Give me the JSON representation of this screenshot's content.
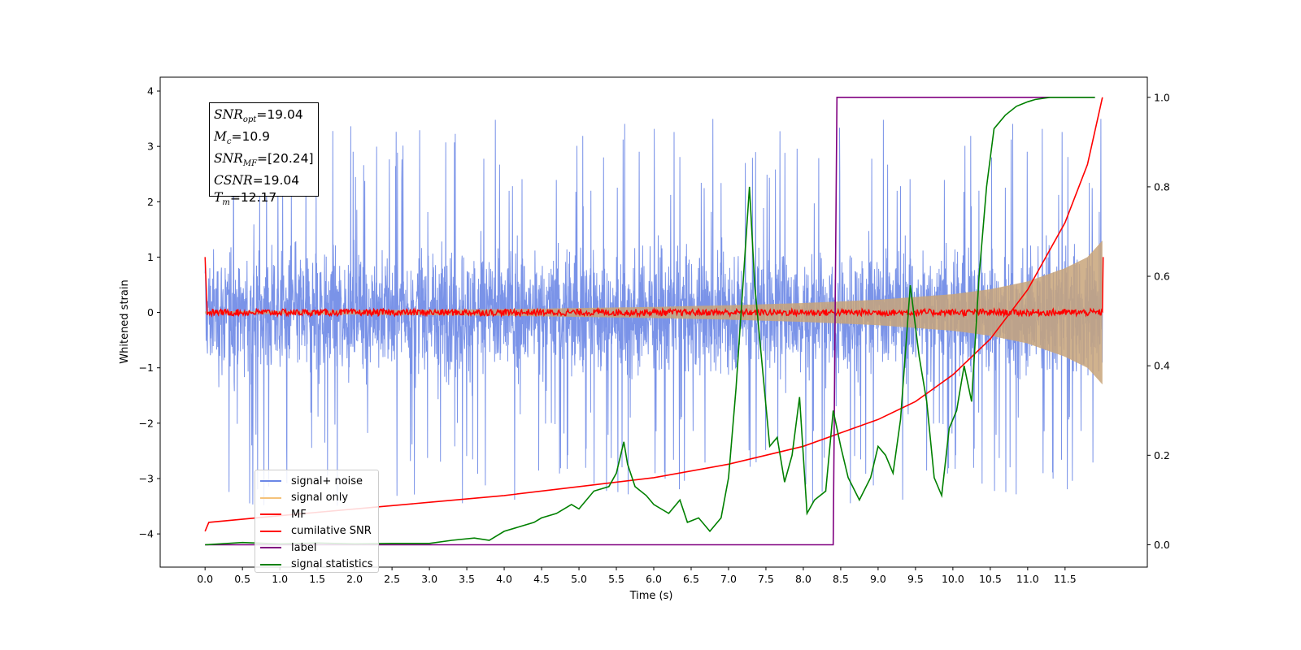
{
  "chart_data": {
    "type": "line",
    "title": "",
    "xlabel": "Time (s)",
    "ylabel": "Whitened strain",
    "y2label": "",
    "xlim": [
      -0.6,
      12.6
    ],
    "ylim": [
      -4.6,
      4.25
    ],
    "y2lim": [
      -0.05,
      1.045
    ],
    "x_ticks": [
      "0.0",
      "0.5",
      "1.0",
      "1.5",
      "2.0",
      "2.5",
      "3.0",
      "3.5",
      "4.0",
      "4.5",
      "5.0",
      "5.5",
      "6.0",
      "6.5",
      "7.0",
      "7.5",
      "8.0",
      "8.5",
      "9.0",
      "9.5",
      "10.0",
      "10.5",
      "11.0",
      "11.5"
    ],
    "y_ticks": [
      "4",
      "3",
      "2",
      "1",
      "0",
      "−1",
      "−2",
      "−3",
      "−4"
    ],
    "y2_ticks": [
      "1.0",
      "0.8",
      "0.6",
      "0.4",
      "0.2",
      "0.0"
    ],
    "grid": false,
    "legend_position": "lower-left",
    "info_box": {
      "snr_opt": "19.04",
      "mc": "10.9",
      "snr_mf": "[20.24]",
      "csnr": "19.04",
      "tm": "12.17"
    },
    "series": [
      {
        "name": "signal+ noise",
        "color": "#6b87e6",
        "axis": "left",
        "kind": "noise",
        "duration": 12.0,
        "noise_envelope": 1.4,
        "peaks_max": 3.85,
        "peaks_min": -4.15
      },
      {
        "name": "signal only",
        "color": "#f5c27a",
        "axis": "left",
        "kind": "chirp",
        "x": [
          0,
          1,
          2,
          3,
          4,
          5,
          6,
          7,
          8,
          9,
          10,
          10.5,
          11,
          11.5,
          11.8,
          12.0
        ],
        "amplitude": [
          0.02,
          0.03,
          0.04,
          0.05,
          0.06,
          0.08,
          0.1,
          0.13,
          0.17,
          0.23,
          0.33,
          0.42,
          0.56,
          0.8,
          1.0,
          1.3
        ]
      },
      {
        "name": "MF",
        "color": "#ff0000",
        "axis": "left",
        "kind": "flat",
        "x": [
          0,
          0.02,
          12.0,
          12.01
        ],
        "y": [
          1.0,
          0.0,
          0.0,
          1.0
        ]
      },
      {
        "name": "cumilative SNR",
        "color": "#ff0000",
        "axis": "right",
        "x": [
          0,
          0.05,
          1,
          2,
          3,
          4,
          5,
          6,
          7,
          8,
          8.5,
          9,
          9.5,
          10,
          10.5,
          11,
          11.5,
          11.8,
          12.0
        ],
        "y": [
          0.03,
          0.05,
          0.065,
          0.08,
          0.095,
          0.11,
          0.13,
          0.15,
          0.18,
          0.22,
          0.25,
          0.28,
          0.32,
          0.38,
          0.46,
          0.57,
          0.72,
          0.85,
          1.0
        ]
      },
      {
        "name": "label",
        "color": "#800080",
        "axis": "right",
        "x": [
          0,
          8.4,
          8.45,
          11.9
        ],
        "y": [
          0,
          0,
          1,
          1
        ]
      },
      {
        "name": "signal statistics",
        "color": "#008000",
        "axis": "right",
        "x": [
          0,
          0.5,
          1,
          1.5,
          2,
          2.5,
          3,
          3.3,
          3.6,
          3.8,
          4.0,
          4.2,
          4.4,
          4.5,
          4.7,
          4.9,
          5.0,
          5.2,
          5.4,
          5.5,
          5.6,
          5.65,
          5.75,
          5.9,
          6.0,
          6.2,
          6.35,
          6.45,
          6.6,
          6.75,
          6.9,
          7.0,
          7.1,
          7.2,
          7.28,
          7.35,
          7.45,
          7.55,
          7.65,
          7.75,
          7.85,
          7.95,
          8.05,
          8.15,
          8.3,
          8.4,
          8.5,
          8.6,
          8.75,
          8.9,
          9.0,
          9.1,
          9.2,
          9.3,
          9.43,
          9.55,
          9.65,
          9.75,
          9.85,
          9.95,
          10.05,
          10.15,
          10.25,
          10.35,
          10.45,
          10.55,
          10.7,
          10.85,
          11.0,
          11.1,
          11.3,
          11.5,
          11.9
        ],
        "y": [
          0.0,
          0.005,
          0.002,
          0.004,
          0.002,
          0.003,
          0.003,
          0.01,
          0.015,
          0.01,
          0.03,
          0.04,
          0.05,
          0.06,
          0.07,
          0.09,
          0.08,
          0.12,
          0.13,
          0.16,
          0.23,
          0.18,
          0.13,
          0.11,
          0.09,
          0.07,
          0.1,
          0.05,
          0.06,
          0.03,
          0.06,
          0.15,
          0.35,
          0.6,
          0.8,
          0.58,
          0.4,
          0.22,
          0.24,
          0.14,
          0.2,
          0.33,
          0.07,
          0.1,
          0.12,
          0.3,
          0.22,
          0.15,
          0.1,
          0.15,
          0.22,
          0.2,
          0.16,
          0.28,
          0.58,
          0.42,
          0.32,
          0.15,
          0.11,
          0.26,
          0.3,
          0.4,
          0.32,
          0.6,
          0.8,
          0.93,
          0.96,
          0.98,
          0.99,
          0.995,
          1.0,
          1.0,
          1.0
        ]
      }
    ]
  }
}
